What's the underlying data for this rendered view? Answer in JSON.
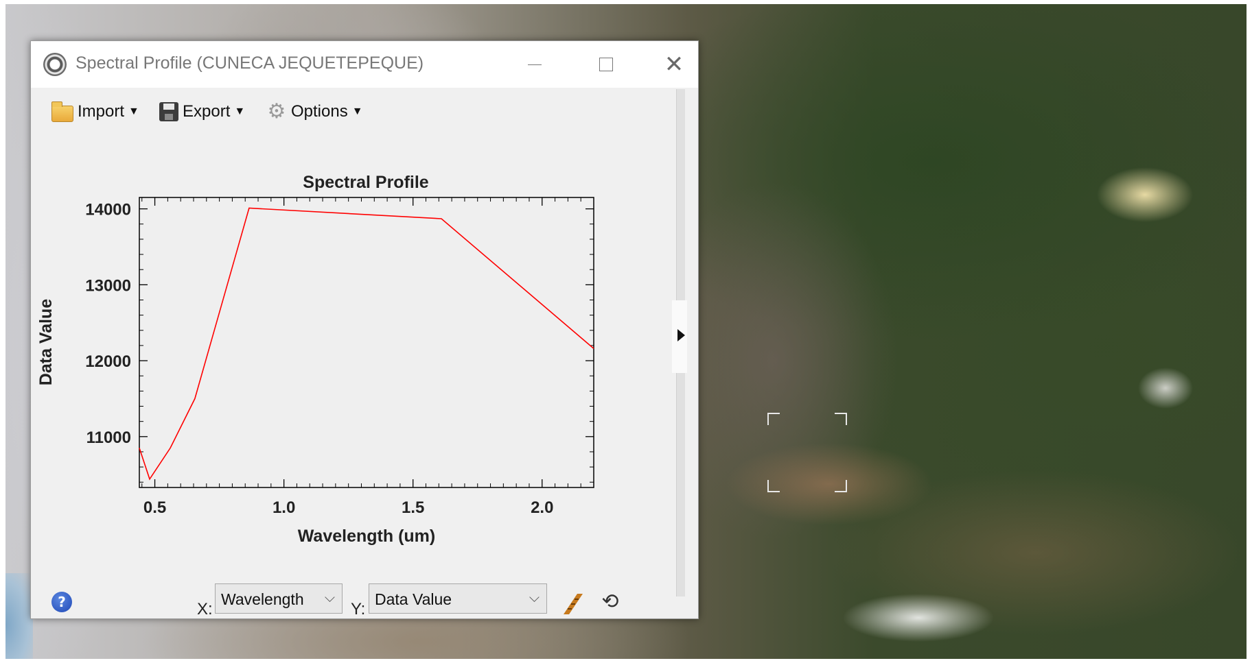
{
  "window": {
    "title": "Spectral Profile (CUNECA JEQUETEPEQUE)",
    "icons": {
      "app": "envi-globe-icon",
      "minimize": "minimize-icon",
      "maximize": "maximize-icon",
      "close": "close-icon"
    }
  },
  "toolbar": {
    "import_label": "Import",
    "export_label": "Export",
    "options_label": "Options",
    "icons": {
      "import": "folder-icon",
      "export": "floppy-disk-icon",
      "options": "gear-icon"
    }
  },
  "chart_data": {
    "type": "line",
    "title": "Spectral Profile",
    "xlabel": "Wavelength (um)",
    "ylabel": "Data Value",
    "xlim": [
      0.44,
      2.2
    ],
    "ylim": [
      10330,
      14150
    ],
    "x_ticks": [
      "0.5",
      "1.0",
      "1.5",
      "2.0"
    ],
    "y_ticks": [
      "11000",
      "12000",
      "13000",
      "14000"
    ],
    "x_tick_values": [
      0.5,
      1.0,
      1.5,
      2.0
    ],
    "y_tick_values": [
      11000,
      12000,
      13000,
      14000
    ],
    "series": [
      {
        "color": "#ff0000",
        "x": [
          0.44,
          0.48,
          0.56,
          0.655,
          0.865,
          1.61,
          2.2
        ],
        "y": [
          10850,
          10440,
          10850,
          11500,
          14010,
          13870,
          12160
        ]
      }
    ]
  },
  "bottom": {
    "x_label": "X:",
    "y_label": "Y:",
    "x_select": "Wavelength",
    "y_select": "Data Value",
    "icons": {
      "help": "help-icon",
      "plot_style": "plot-style-icon",
      "reset": "refresh-icon"
    }
  }
}
